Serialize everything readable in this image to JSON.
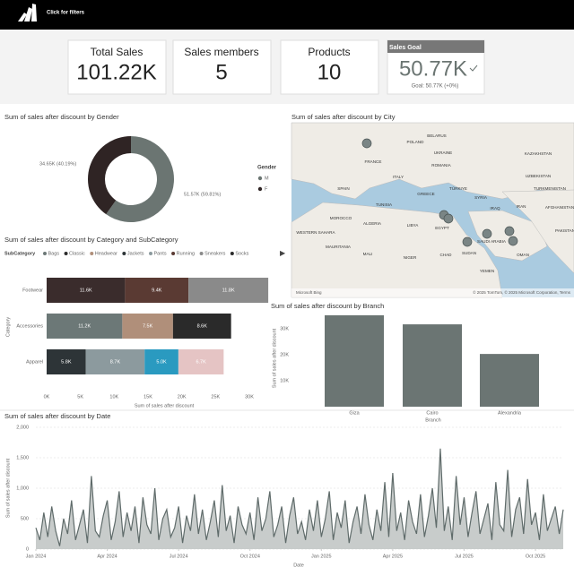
{
  "header": {
    "filter_text": "Click for filters"
  },
  "kpis": [
    {
      "label": "Total Sales",
      "value": "101.22K"
    },
    {
      "label": "Sales members",
      "value": "5"
    },
    {
      "label": "Products",
      "value": "10"
    }
  ],
  "goal": {
    "label": "Sales Goal",
    "value": "50.77K",
    "goal_text": "Goal: 50.77K (+0%)"
  },
  "map": {
    "title": "Sum of sales after discount by City",
    "labels": [
      "BELARUS",
      "POLAND",
      "UKRAINE",
      "KAZAKHSTAN",
      "FRANCE",
      "ROMANIA",
      "UZBEKISTAN",
      "SPAIN",
      "ITALY",
      "TÜRKIYE",
      "TURKMENISTAN",
      "GREECE",
      "TUNISIA",
      "SYRIA",
      "IRAQ",
      "IRAN",
      "AFGHANISTAN",
      "MOROCCO",
      "ALGERIA",
      "LIBYA",
      "EGYPT",
      "SAUDI ARABIA",
      "PAKISTAN",
      "WESTERN SAHARA",
      "MAURITANIA",
      "MALI",
      "NIGER",
      "CHAD",
      "SUDAN",
      "OMAN",
      "YEMEN"
    ],
    "credits": [
      "Microsoft Bing",
      "© 2025 TomTom, © 2025 Microsoft Corporation, Terms"
    ]
  },
  "chart_data": [
    {
      "type": "pie",
      "title": "Sum of sales after discount by Gender",
      "legend_title": "Gender",
      "categories": [
        "M",
        "F"
      ],
      "values": [
        51570,
        34650
      ],
      "value_labels": [
        "51.57K (59.81%)",
        "34.65K (40.19%)"
      ],
      "colors": [
        "#6b7572",
        "#2f2424"
      ],
      "legend": "right"
    },
    {
      "type": "stacked_bar",
      "title": "Sum of sales after discount by Category and SubCategory",
      "legend_title": "SubCategory",
      "legend": [
        {
          "name": "Bags",
          "color": "#6c7877"
        },
        {
          "name": "Classic",
          "color": "#2b2b2b"
        },
        {
          "name": "Headwear",
          "color": "#b08f7a"
        },
        {
          "name": "Jackets",
          "color": "#2d3437"
        },
        {
          "name": "Pants",
          "color": "#8c9a9e"
        },
        {
          "name": "Running",
          "color": "#5a3a33"
        },
        {
          "name": "Sneakers",
          "color": "#8a8a8a"
        },
        {
          "name": "Socks",
          "color": "#2a2a2a"
        }
      ],
      "categories": [
        "Footwear",
        "Accessories",
        "Apparel"
      ],
      "segments": [
        [
          {
            "value": 11600,
            "label": "11.6K",
            "color": "#3a2c2c"
          },
          {
            "value": 9400,
            "label": "9.4K",
            "color": "#5a3a33"
          },
          {
            "value": 11800,
            "label": "11.8K",
            "color": "#8a8a8a"
          }
        ],
        [
          {
            "value": 11200,
            "label": "11.2K",
            "color": "#6c7877"
          },
          {
            "value": 7500,
            "label": "7.5K",
            "color": "#b08f7a"
          },
          {
            "value": 8600,
            "label": "8.6K",
            "color": "#2a2a2a"
          }
        ],
        [
          {
            "value": 5800,
            "label": "5.8K",
            "color": "#2d3437"
          },
          {
            "value": 8700,
            "label": "8.7K",
            "color": "#8c9a9e"
          },
          {
            "value": 5000,
            "label": "5.0K",
            "color": "#2a9ac0"
          },
          {
            "value": 6700,
            "label": "6.7K",
            "color": "#e5c4c4"
          }
        ]
      ],
      "xlim": [
        0,
        33000
      ],
      "xticks": [
        {
          "value": 0,
          "label": "0K"
        },
        {
          "value": 5000,
          "label": "5K"
        },
        {
          "value": 10000,
          "label": "10K"
        },
        {
          "value": 15000,
          "label": "15K"
        },
        {
          "value": 20000,
          "label": "20K"
        },
        {
          "value": 25000,
          "label": "25K"
        },
        {
          "value": 30000,
          "label": "30K"
        }
      ],
      "xlabel": "Sum of sales after discount",
      "ylabel": "Category"
    },
    {
      "type": "bar",
      "title": "Sum of sales after discount by Branch",
      "categories": [
        "Giza",
        "Cairo",
        "Alexandria"
      ],
      "values": [
        35200,
        31700,
        20300
      ],
      "color": "#6b7573",
      "ylim": [
        0,
        36000
      ],
      "yticks": [
        {
          "value": 10000,
          "label": "10K"
        },
        {
          "value": 20000,
          "label": "20K"
        },
        {
          "value": 30000,
          "label": "30K"
        }
      ],
      "xlabel": "Branch",
      "ylabel": "Sum of sales after discount"
    },
    {
      "type": "area",
      "title": "Sum of sales after discount by Date",
      "color": "#5f6b6a",
      "fill": "#c8cccb",
      "values": [
        350,
        150,
        600,
        200,
        700,
        300,
        50,
        500,
        250,
        800,
        150,
        400,
        650,
        100,
        1200,
        300,
        200,
        550,
        800,
        150,
        450,
        950,
        200,
        600,
        300,
        700,
        100,
        850,
        400,
        250,
        1000,
        150,
        500,
        650,
        200,
        350,
        700,
        100,
        550,
        300,
        900,
        250,
        650,
        150,
        450,
        800,
        200,
        1050,
        300,
        550,
        100,
        700,
        400,
        250,
        600,
        150,
        850,
        300,
        500,
        950,
        200,
        400,
        700,
        100,
        550,
        850,
        250,
        450,
        150,
        650,
        300,
        800,
        200,
        500,
        950,
        150,
        600,
        350,
        800,
        100,
        450,
        700,
        250,
        900,
        400,
        150,
        650,
        300,
        1100,
        200,
        1250,
        300,
        600,
        150,
        800,
        450,
        250,
        900,
        200,
        550,
        1000,
        350,
        1650,
        300,
        700,
        150,
        1200,
        400,
        850,
        200,
        600,
        950,
        250,
        500,
        750,
        150,
        1100,
        400,
        300,
        1300,
        200,
        650,
        850,
        250,
        1150,
        400,
        600,
        150,
        900,
        300,
        500,
        700,
        250,
        650
      ],
      "xlim": [
        0,
        133
      ],
      "xticks": [
        {
          "value": 0,
          "label": "Jan 2024"
        },
        {
          "value": 18,
          "label": "Apr 2024"
        },
        {
          "value": 36,
          "label": "Jul 2024"
        },
        {
          "value": 54,
          "label": "Oct 2024"
        },
        {
          "value": 72,
          "label": "Jan 2025"
        },
        {
          "value": 90,
          "label": "Apr 2025"
        },
        {
          "value": 108,
          "label": "Jul 2025"
        },
        {
          "value": 126,
          "label": "Oct 2025"
        }
      ],
      "ylim": [
        0,
        2000
      ],
      "yticks": [
        0,
        500,
        {
          "value": 1000,
          "label": "1,000"
        },
        {
          "value": 1500,
          "label": "1,500"
        },
        {
          "value": 2000,
          "label": "2,000"
        }
      ],
      "xlabel": "Date",
      "ylabel": "Sum of sales after discount"
    }
  ]
}
